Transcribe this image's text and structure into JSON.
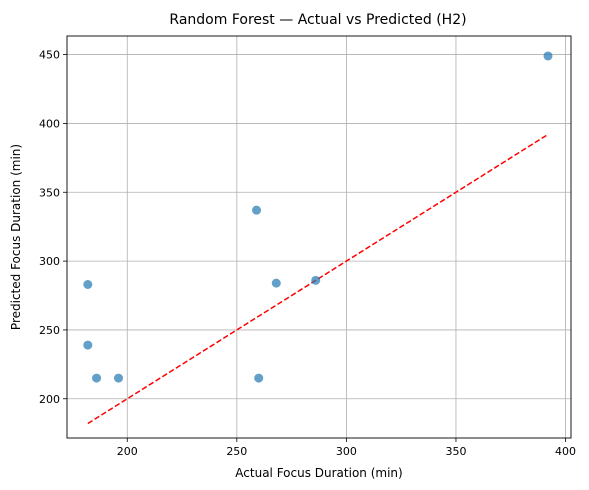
{
  "chart_data": {
    "type": "scatter",
    "title": "Random Forest — Actual vs Predicted (H2)",
    "xlabel": "Actual Focus Duration (min)",
    "ylabel": "Predicted Focus Duration (min)",
    "xlim": [
      172.5,
      402.5
    ],
    "ylim": [
      171.5,
      463.5
    ],
    "xticks": [
      200,
      250,
      300,
      350,
      400
    ],
    "yticks": [
      200,
      250,
      300,
      350,
      400,
      450
    ],
    "grid": true,
    "series": [
      {
        "color": "#1f77b4",
        "points": [
          {
            "x": 182,
            "y": 283
          },
          {
            "x": 182,
            "y": 239
          },
          {
            "x": 186,
            "y": 215
          },
          {
            "x": 196,
            "y": 215
          },
          {
            "x": 259,
            "y": 337
          },
          {
            "x": 260,
            "y": 215
          },
          {
            "x": 268,
            "y": 284
          },
          {
            "x": 286,
            "y": 286
          },
          {
            "x": 392,
            "y": 449
          }
        ]
      }
    ],
    "reference_line": {
      "style": "dashed",
      "color": "#ff0000",
      "x": [
        182,
        392
      ],
      "y": [
        182,
        392
      ]
    }
  }
}
